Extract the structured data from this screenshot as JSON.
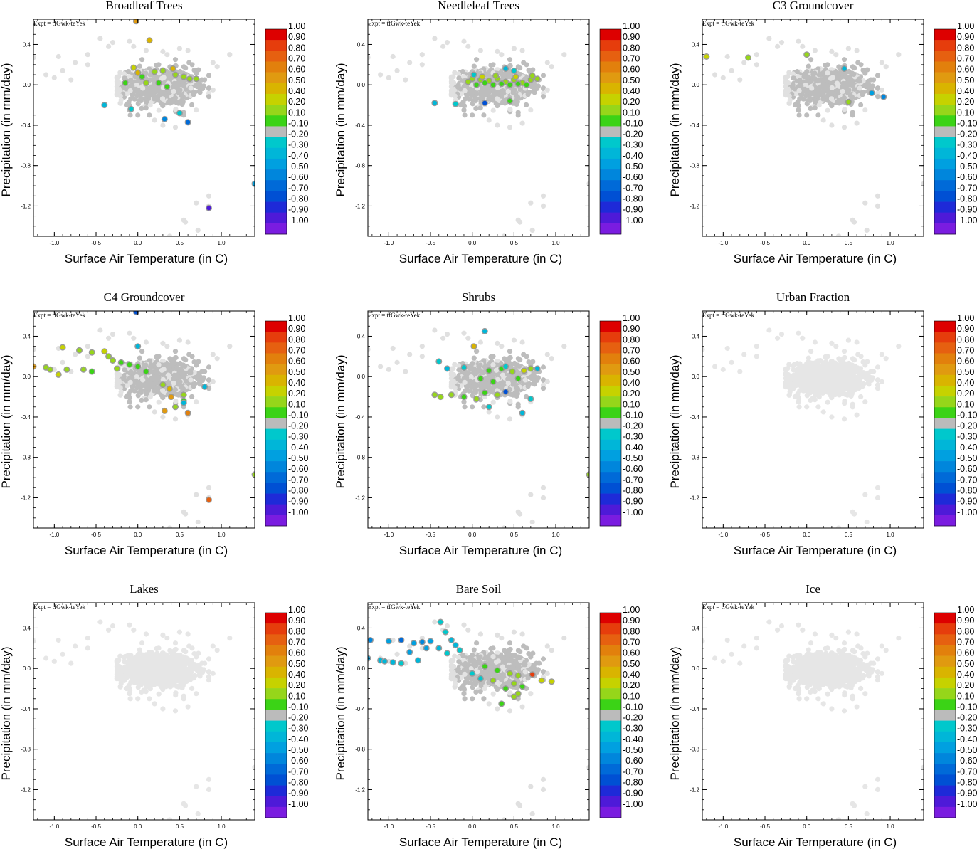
{
  "figure": {
    "expt_label": "Expt = tfGwk-teYek",
    "xlabel": "Surface Air Temperature (in C)",
    "ylabel": "Precipitation (in mm/day)",
    "xlim": [
      -1.25,
      1.4
    ],
    "ylim": [
      -1.5,
      0.65
    ],
    "xticks": [
      "-1.0",
      "-0.5",
      "0.0",
      "0.5",
      "1.0"
    ],
    "xtick_values": [
      -1.0,
      -0.5,
      0.0,
      0.5,
      1.0
    ],
    "yticks": [
      "0.4",
      "0.0",
      "-0.4",
      "-0.8",
      "-1.2"
    ],
    "ytick_values": [
      0.4,
      0.0,
      -0.4,
      -0.8,
      -1.2
    ]
  },
  "colorbar": {
    "labels": [
      "1.00",
      "0.90",
      "0.80",
      "0.70",
      "0.60",
      "0.50",
      "0.40",
      "0.20",
      "0.10",
      "-0.10",
      "-0.20",
      "-0.30",
      "-0.40",
      "-0.50",
      "-0.60",
      "-0.70",
      "-0.80",
      "-0.90",
      "-1.00"
    ],
    "colors": [
      "#dd0000",
      "#e63d0c",
      "#e66010",
      "#e2800c",
      "#e09a10",
      "#d9b400",
      "#c6d200",
      "#96d61a",
      "#3bd316",
      "#bbbbbb",
      "#00c8cc",
      "#00b6d8",
      "#00a0e0",
      "#0086dc",
      "#006ad8",
      "#0050d4",
      "#1e2ad8",
      "#4e1ad8",
      "#7a1ce0"
    ]
  },
  "panel_titles": [
    "Broadleaf Trees",
    "Needleleaf Trees",
    "C3 Groundcover",
    "C4 Groundcover",
    "Shrubs",
    "Urban Fraction",
    "Lakes",
    "Bare Soil",
    "Ice"
  ],
  "chart_data": [
    {
      "type": "scatter",
      "title": "Broadleaf Trees",
      "highlighted": [
        {
          "x": -0.02,
          "y": 0.63,
          "c": 0.6
        },
        {
          "x": 0.14,
          "y": 0.44,
          "c": 0.5
        },
        {
          "x": -0.05,
          "y": 0.17,
          "c": 0.4
        },
        {
          "x": 0.0,
          "y": 0.12,
          "c": 0.5
        },
        {
          "x": 0.2,
          "y": 0.13,
          "c": 0.2
        },
        {
          "x": 0.3,
          "y": 0.14,
          "c": 0.3
        },
        {
          "x": 0.42,
          "y": 0.16,
          "c": 0.5
        },
        {
          "x": 0.45,
          "y": 0.1,
          "c": 0.2
        },
        {
          "x": 0.55,
          "y": 0.08,
          "c": 0.2
        },
        {
          "x": 0.62,
          "y": 0.06,
          "c": 0.2
        },
        {
          "x": 0.7,
          "y": 0.06,
          "c": 0.2
        },
        {
          "x": 0.05,
          "y": 0.08,
          "c": 0.1
        },
        {
          "x": 0.25,
          "y": 0.02,
          "c": 0.1
        },
        {
          "x": 0.35,
          "y": -0.02,
          "c": 0.1
        },
        {
          "x": 0.1,
          "y": 0.02,
          "c": 0.2
        },
        {
          "x": -0.15,
          "y": 0.02,
          "c": 0.1
        },
        {
          "x": -0.4,
          "y": -0.2,
          "c": -0.3
        },
        {
          "x": -0.08,
          "y": -0.24,
          "c": -0.2
        },
        {
          "x": 0.32,
          "y": -0.34,
          "c": -0.5
        },
        {
          "x": 0.6,
          "y": -0.37,
          "c": -0.6
        },
        {
          "x": 0.5,
          "y": -0.28,
          "c": -0.2
        },
        {
          "x": 0.85,
          "y": -1.22,
          "c": -0.9
        },
        {
          "x": 1.4,
          "y": -0.98,
          "c": -0.4
        }
      ]
    },
    {
      "type": "scatter",
      "title": "Needleleaf Trees",
      "highlighted": [
        {
          "x": 0.0,
          "y": 0.06,
          "c": 0.2
        },
        {
          "x": 0.1,
          "y": 0.05,
          "c": 0.2
        },
        {
          "x": 0.2,
          "y": 0.04,
          "c": 0.2
        },
        {
          "x": 0.3,
          "y": 0.06,
          "c": 0.2
        },
        {
          "x": 0.4,
          "y": 0.03,
          "c": 0.2
        },
        {
          "x": 0.5,
          "y": 0.05,
          "c": 0.2
        },
        {
          "x": 0.6,
          "y": 0.02,
          "c": 0.2
        },
        {
          "x": 0.7,
          "y": 0.05,
          "c": 0.2
        },
        {
          "x": 0.78,
          "y": 0.06,
          "c": 0.2
        },
        {
          "x": 0.05,
          "y": 0.0,
          "c": 0.1
        },
        {
          "x": 0.15,
          "y": 0.02,
          "c": 0.1
        },
        {
          "x": 0.25,
          "y": 0.0,
          "c": 0.1
        },
        {
          "x": 0.35,
          "y": 0.01,
          "c": 0.1
        },
        {
          "x": 0.45,
          "y": 0.0,
          "c": 0.1
        },
        {
          "x": 0.55,
          "y": 0.01,
          "c": 0.1
        },
        {
          "x": 0.65,
          "y": 0.0,
          "c": 0.1
        },
        {
          "x": -0.05,
          "y": 0.03,
          "c": 0.2
        },
        {
          "x": 0.12,
          "y": 0.08,
          "c": 0.4
        },
        {
          "x": 0.28,
          "y": 0.09,
          "c": 0.3
        },
        {
          "x": 0.52,
          "y": 0.08,
          "c": 0.4
        },
        {
          "x": 0.72,
          "y": 0.09,
          "c": 0.3
        },
        {
          "x": 0.4,
          "y": 0.16,
          "c": -0.3
        },
        {
          "x": 0.5,
          "y": 0.14,
          "c": -0.2
        },
        {
          "x": 0.02,
          "y": 0.1,
          "c": -0.2
        },
        {
          "x": -0.45,
          "y": -0.18,
          "c": -0.3
        },
        {
          "x": -0.2,
          "y": -0.19,
          "c": -0.2
        },
        {
          "x": 0.15,
          "y": -0.18,
          "c": -0.7
        },
        {
          "x": 0.45,
          "y": -0.16,
          "c": 0.1
        }
      ]
    },
    {
      "type": "scatter",
      "title": "C3 Groundcover",
      "highlighted": [
        {
          "x": -1.2,
          "y": 0.28,
          "c": 0.4
        },
        {
          "x": -0.7,
          "y": 0.27,
          "c": 0.3
        },
        {
          "x": 0.0,
          "y": 0.3,
          "c": 0.2
        },
        {
          "x": 0.5,
          "y": -0.17,
          "c": 0.2
        },
        {
          "x": 0.92,
          "y": -0.12,
          "c": -0.5
        },
        {
          "x": 0.78,
          "y": -0.08,
          "c": -0.4
        },
        {
          "x": 0.45,
          "y": 0.16,
          "c": -0.3
        }
      ]
    },
    {
      "type": "scatter",
      "title": "C4 Groundcover",
      "highlighted": [
        {
          "x": -0.02,
          "y": 0.64,
          "c": -0.7
        },
        {
          "x": 0.0,
          "y": 0.3,
          "c": -0.3
        },
        {
          "x": -0.9,
          "y": 0.29,
          "c": 0.4
        },
        {
          "x": -0.7,
          "y": 0.26,
          "c": 0.2
        },
        {
          "x": -0.55,
          "y": 0.24,
          "c": 0.3
        },
        {
          "x": -0.4,
          "y": 0.25,
          "c": 0.4
        },
        {
          "x": -0.35,
          "y": 0.2,
          "c": 0.3
        },
        {
          "x": -0.3,
          "y": 0.16,
          "c": 0.2
        },
        {
          "x": -0.2,
          "y": 0.14,
          "c": 0.1
        },
        {
          "x": -0.1,
          "y": 0.12,
          "c": 0.1
        },
        {
          "x": -0.25,
          "y": 0.08,
          "c": 0.2
        },
        {
          "x": -1.1,
          "y": 0.09,
          "c": 0.3
        },
        {
          "x": -1.05,
          "y": 0.07,
          "c": 0.3
        },
        {
          "x": -0.85,
          "y": 0.07,
          "c": 0.3
        },
        {
          "x": -0.65,
          "y": 0.07,
          "c": 0.2
        },
        {
          "x": -1.25,
          "y": 0.1,
          "c": 0.6
        },
        {
          "x": -0.95,
          "y": 0.02,
          "c": 0.4
        },
        {
          "x": -0.55,
          "y": 0.05,
          "c": 0.1
        },
        {
          "x": 0.0,
          "y": 0.1,
          "c": 0.1
        },
        {
          "x": 0.1,
          "y": 0.05,
          "c": 0.1
        },
        {
          "x": 0.3,
          "y": -0.08,
          "c": 0.2
        },
        {
          "x": 0.38,
          "y": -0.12,
          "c": 0.5
        },
        {
          "x": 0.4,
          "y": -0.2,
          "c": 0.6
        },
        {
          "x": 0.55,
          "y": -0.18,
          "c": 0.2
        },
        {
          "x": 0.45,
          "y": -0.3,
          "c": 0.2
        },
        {
          "x": 0.55,
          "y": -0.24,
          "c": 0.1
        },
        {
          "x": 0.32,
          "y": -0.34,
          "c": 0.6
        },
        {
          "x": 0.6,
          "y": -0.36,
          "c": 0.7
        },
        {
          "x": 0.55,
          "y": -0.26,
          "c": -0.3
        },
        {
          "x": 0.8,
          "y": -0.1,
          "c": -0.3
        },
        {
          "x": 0.85,
          "y": -1.22,
          "c": 0.8
        },
        {
          "x": 1.4,
          "y": -0.97,
          "c": 0.2
        }
      ]
    },
    {
      "type": "scatter",
      "title": "Shrubs",
      "highlighted": [
        {
          "x": 0.15,
          "y": 0.45,
          "c": -0.3
        },
        {
          "x": 0.02,
          "y": 0.3,
          "c": 0.5
        },
        {
          "x": -0.4,
          "y": 0.15,
          "c": -0.2
        },
        {
          "x": -0.3,
          "y": 0.08,
          "c": -0.3
        },
        {
          "x": -0.1,
          "y": 0.09,
          "c": -0.2
        },
        {
          "x": 0.2,
          "y": 0.06,
          "c": 0.1
        },
        {
          "x": 0.35,
          "y": 0.08,
          "c": 0.1
        },
        {
          "x": 0.48,
          "y": 0.05,
          "c": 0.2
        },
        {
          "x": 0.62,
          "y": 0.06,
          "c": 0.4
        },
        {
          "x": 0.7,
          "y": 0.08,
          "c": 0.3
        },
        {
          "x": 0.78,
          "y": 0.08,
          "c": -0.3
        },
        {
          "x": 0.4,
          "y": 0.1,
          "c": -0.2
        },
        {
          "x": 0.1,
          "y": -0.02,
          "c": 0.1
        },
        {
          "x": 0.25,
          "y": -0.05,
          "c": 0.1
        },
        {
          "x": 0.55,
          "y": -0.02,
          "c": 0.1
        },
        {
          "x": -0.45,
          "y": -0.18,
          "c": 0.2
        },
        {
          "x": -0.38,
          "y": -0.2,
          "c": 0.2
        },
        {
          "x": -0.25,
          "y": -0.18,
          "c": 0.2
        },
        {
          "x": -0.1,
          "y": -0.2,
          "c": 0.1
        },
        {
          "x": 0.05,
          "y": -0.22,
          "c": 0.3
        },
        {
          "x": 0.15,
          "y": -0.16,
          "c": 0.1
        },
        {
          "x": 0.3,
          "y": -0.18,
          "c": 0.2
        },
        {
          "x": 0.4,
          "y": -0.15,
          "c": -0.7
        },
        {
          "x": 0.2,
          "y": -0.3,
          "c": -0.2
        },
        {
          "x": 0.6,
          "y": -0.36,
          "c": -0.3
        },
        {
          "x": 0.7,
          "y": -0.22,
          "c": -0.2
        },
        {
          "x": 1.4,
          "y": -0.97,
          "c": 0.3
        }
      ]
    },
    {
      "type": "scatter",
      "title": "Urban Fraction",
      "highlighted": []
    },
    {
      "type": "scatter",
      "title": "Lakes",
      "highlighted": []
    },
    {
      "type": "scatter",
      "title": "Bare Soil",
      "highlighted": [
        {
          "x": -1.22,
          "y": 0.28,
          "c": -0.5
        },
        {
          "x": -1.0,
          "y": 0.27,
          "c": -0.4
        },
        {
          "x": -0.85,
          "y": 0.28,
          "c": -0.6
        },
        {
          "x": -0.7,
          "y": 0.25,
          "c": -0.4
        },
        {
          "x": -0.6,
          "y": 0.26,
          "c": -0.5
        },
        {
          "x": -0.5,
          "y": 0.27,
          "c": -0.4
        },
        {
          "x": -0.38,
          "y": 0.46,
          "c": -0.2
        },
        {
          "x": -0.32,
          "y": 0.36,
          "c": -0.2
        },
        {
          "x": -0.25,
          "y": 0.28,
          "c": -0.3
        },
        {
          "x": -0.2,
          "y": 0.23,
          "c": -0.3
        },
        {
          "x": -0.15,
          "y": 0.18,
          "c": -0.2
        },
        {
          "x": -0.4,
          "y": 0.2,
          "c": -0.3
        },
        {
          "x": -0.55,
          "y": 0.2,
          "c": -0.4
        },
        {
          "x": -0.75,
          "y": 0.16,
          "c": -0.4
        },
        {
          "x": -0.3,
          "y": 0.15,
          "c": -0.2
        },
        {
          "x": -1.25,
          "y": 0.1,
          "c": -0.4
        },
        {
          "x": -1.1,
          "y": 0.08,
          "c": -0.3
        },
        {
          "x": -1.05,
          "y": 0.07,
          "c": -0.3
        },
        {
          "x": -0.95,
          "y": 0.06,
          "c": -0.3
        },
        {
          "x": -0.85,
          "y": 0.05,
          "c": -0.2
        },
        {
          "x": -0.65,
          "y": 0.08,
          "c": -0.3
        },
        {
          "x": 0.15,
          "y": 0.02,
          "c": 0.1
        },
        {
          "x": 0.3,
          "y": -0.02,
          "c": 0.1
        },
        {
          "x": 0.45,
          "y": -0.05,
          "c": 0.2
        },
        {
          "x": 0.55,
          "y": -0.07,
          "c": 0.3
        },
        {
          "x": 0.72,
          "y": -0.06,
          "c": 0.9
        },
        {
          "x": 0.83,
          "y": -0.12,
          "c": 0.4
        },
        {
          "x": 0.95,
          "y": -0.13,
          "c": 0.4
        },
        {
          "x": 0.5,
          "y": -0.15,
          "c": 0.3
        },
        {
          "x": 0.4,
          "y": -0.2,
          "c": 0.1
        },
        {
          "x": 0.55,
          "y": -0.25,
          "c": 0.3
        },
        {
          "x": 0.5,
          "y": -0.28,
          "c": 0.2
        },
        {
          "x": 0.35,
          "y": -0.35,
          "c": 0.1
        },
        {
          "x": 0.25,
          "y": -0.12,
          "c": 0.2
        },
        {
          "x": 0.6,
          "y": -0.18,
          "c": 0.1
        },
        {
          "x": 0.0,
          "y": -0.05,
          "c": -0.2
        },
        {
          "x": 0.1,
          "y": -0.1,
          "c": -0.2
        }
      ]
    },
    {
      "type": "scatter",
      "title": "Ice",
      "highlighted": []
    }
  ]
}
